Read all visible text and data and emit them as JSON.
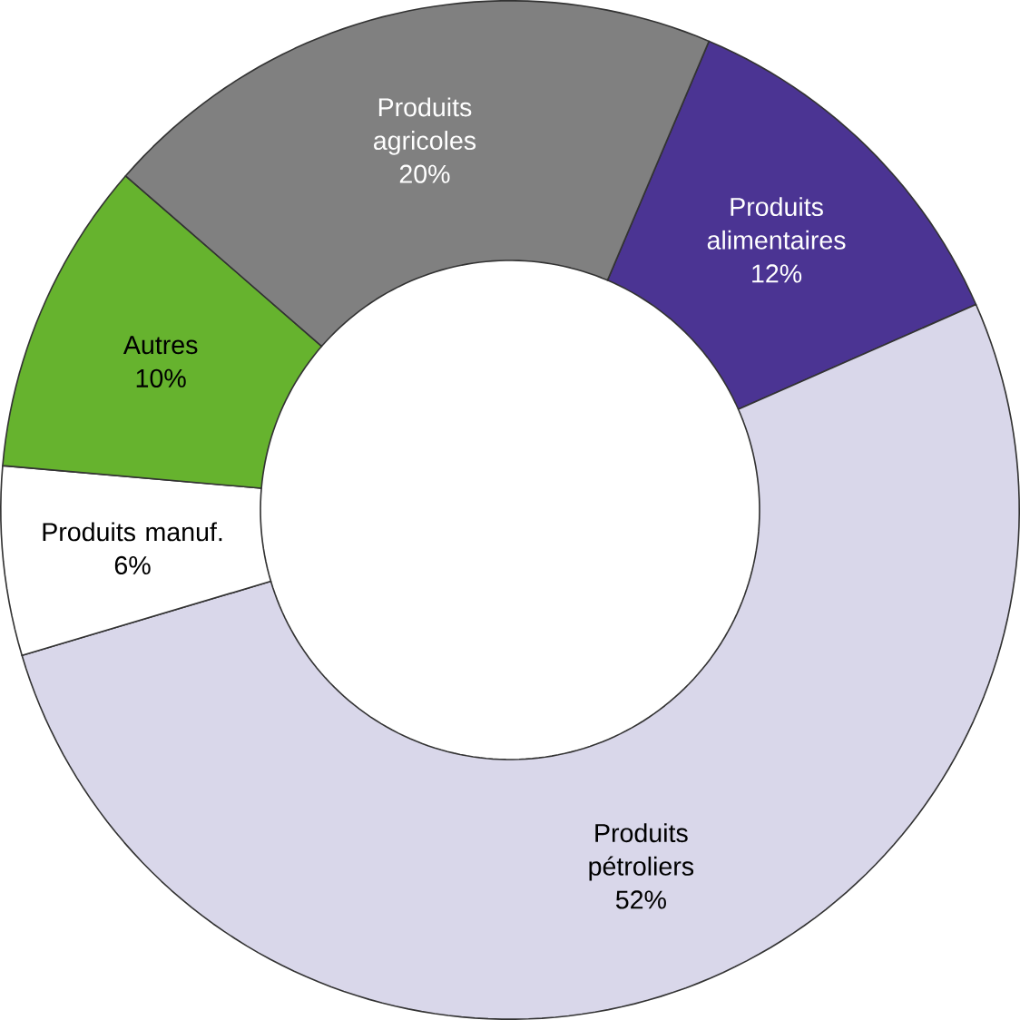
{
  "chart_data": {
    "type": "donut",
    "categories": [
      "Produits alimentaires",
      "Produits pétroliers",
      "Produits manuf.",
      "Autres",
      "Produits agricoles"
    ],
    "values": [
      12,
      52,
      6,
      10,
      20
    ],
    "colors": [
      "#4b3493",
      "#d9d7ea",
      "#ffffff",
      "#66b32e",
      "#808080"
    ],
    "value_labels": [
      "12%",
      "52%",
      "6%",
      "10%",
      "20%"
    ]
  }
}
